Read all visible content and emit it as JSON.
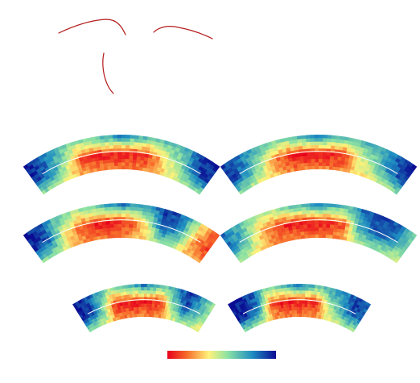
{
  "figure": {
    "background": "#ffffff",
    "sketch_color": "#b31b1b",
    "colormap": [
      "#d7191c",
      "#fdae61",
      "#ffffbf",
      "#abdda4",
      "#2b83ba",
      "#08088e"
    ],
    "panel_count": 6,
    "panels": [
      {
        "name": "panel-top-left",
        "pattern": [
          0.98,
          0.85,
          0.55,
          0.15,
          0.05,
          0.05,
          0.05,
          0.08,
          0.35,
          0.55,
          0.9,
          0.96
        ]
      },
      {
        "name": "panel-top-right",
        "pattern": [
          0.95,
          0.8,
          0.55,
          0.2,
          0.05,
          0.04,
          0.05,
          0.1,
          0.4,
          0.6,
          0.85,
          0.97
        ]
      },
      {
        "name": "panel-mid-left",
        "pattern": [
          0.97,
          0.88,
          0.45,
          0.15,
          0.06,
          0.05,
          0.1,
          0.4,
          0.92,
          0.7,
          0.25,
          0.1
        ]
      },
      {
        "name": "panel-mid-right",
        "pattern": [
          0.85,
          0.65,
          0.3,
          0.1,
          0.05,
          0.05,
          0.05,
          0.15,
          0.75,
          0.9,
          0.8,
          0.6
        ]
      },
      {
        "name": "panel-bottom-left",
        "pattern": [
          0.97,
          0.9,
          0.6,
          0.1,
          0.05,
          0.05,
          0.05,
          0.1,
          0.6,
          0.9,
          0.7,
          0.5
        ]
      },
      {
        "name": "panel-bottom-right",
        "pattern": [
          0.98,
          0.95,
          0.8,
          0.2,
          0.05,
          0.05,
          0.05,
          0.1,
          0.5,
          0.7,
          0.9,
          0.85
        ]
      }
    ],
    "colorbar": {
      "orientation": "horizontal",
      "direction": "red-to-blue"
    }
  }
}
